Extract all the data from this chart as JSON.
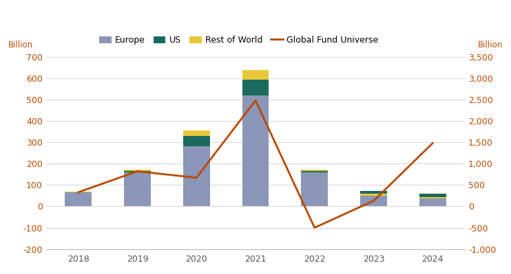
{
  "years": [
    2018,
    2019,
    2020,
    2021,
    2022,
    2023,
    2024
  ],
  "europe": [
    65,
    158,
    280,
    520,
    158,
    72,
    58
  ],
  "us": [
    2,
    8,
    48,
    72,
    8,
    -22,
    -22
  ],
  "rest_of_world": [
    3,
    7,
    28,
    47,
    5,
    10,
    7
  ],
  "global_fund_universe": [
    330,
    820,
    670,
    2480,
    -500,
    130,
    1480
  ],
  "europe_color": "#8b96b8",
  "us_color": "#1a6b5e",
  "row_color": "#e8c83a",
  "line_color": "#b84a00",
  "background_color": "#ffffff",
  "grid_color": "#cccccc",
  "left_ylabel": "Billion",
  "right_ylabel": "Billion",
  "ylim_left": [
    -200,
    700
  ],
  "ylim_right": [
    -1000,
    3500
  ],
  "yticks_left": [
    -200,
    -100,
    0,
    100,
    200,
    300,
    400,
    500,
    600,
    700
  ],
  "yticks_right": [
    -1000,
    -500,
    0,
    500,
    1000,
    1500,
    2000,
    2500,
    3000,
    3500
  ],
  "legend_labels": [
    "Europe",
    "US",
    "Rest of World",
    "Global Fund Universe"
  ],
  "tick_label_color": "#b84a00",
  "x_tick_color": "#555555",
  "bar_width": 0.45
}
